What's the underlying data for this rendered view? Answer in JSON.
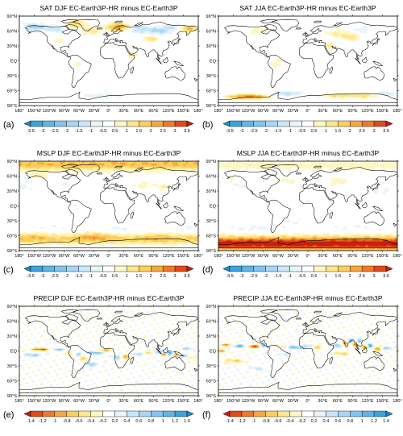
{
  "panels": [
    {
      "id": "a",
      "title": "SAT DJF EC-Earth3P-HR minus EC-Earth3P",
      "label": "(a)",
      "scale": "sat",
      "pattern": "sat_djf"
    },
    {
      "id": "b",
      "title": "SAT JJA EC-Earth3P-HR minus EC-Earth3P",
      "label": "(b)",
      "scale": "sat",
      "pattern": "sat_jja"
    },
    {
      "id": "c",
      "title": "MSLP DJF EC-Earth3P-HR minus EC-Earth3P",
      "label": "(c)",
      "scale": "mslp",
      "pattern": "mslp_djf"
    },
    {
      "id": "d",
      "title": "MSLP JJA EC-Earth3P-HR minus EC-Earth3P",
      "label": "(d)",
      "scale": "mslp",
      "pattern": "mslp_jja"
    },
    {
      "id": "e",
      "title": "PRECIP DJF EC-Earth3P-HR minus EC-Earth3P",
      "label": "(e)",
      "scale": "precip",
      "pattern": "precip_djf"
    },
    {
      "id": "f",
      "title": "PRECIP JJA EC-Earth3P-HR minus EC-Earth3P",
      "label": "(f)",
      "scale": "precip",
      "pattern": "precip_jja"
    }
  ],
  "lat_labels": [
    "90°N",
    "60°N",
    "30°N",
    "EQ",
    "30°S",
    "60°S",
    "90°S"
  ],
  "lon_labels": [
    "180°",
    "150°W",
    "120°W",
    "90°W",
    "60°W",
    "30°W",
    "0°",
    "30°E",
    "60°E",
    "90°E",
    "120°E",
    "150°E",
    "180°"
  ],
  "scales": {
    "sat": {
      "labels": [
        "-3.5",
        "-3",
        "-2.5",
        "-2",
        "-1.5",
        "-1",
        "-0.5",
        "0.5",
        "1",
        "1.5",
        "2",
        "2.5",
        "3",
        "3.5"
      ],
      "colors": [
        "#1e8fd0",
        "#3ea2dc",
        "#5fb5e6",
        "#82c6ee",
        "#a6d7f4",
        "#c9e7f8",
        "#e8f5fb",
        "#ffffff",
        "#fff6c4",
        "#fde88c",
        "#fbcf5e",
        "#f6a83e",
        "#ee7a29",
        "#e24a1b",
        "#c8200f"
      ]
    },
    "mslp": {
      "labels": [
        "-3.5",
        "-3",
        "-2.5",
        "-2",
        "-1.5",
        "-1",
        "-0.5",
        "0.5",
        "1",
        "1.5",
        "2",
        "2.5",
        "3",
        "3.5"
      ],
      "colors": [
        "#1e8fd0",
        "#3ea2dc",
        "#5fb5e6",
        "#82c6ee",
        "#a6d7f4",
        "#c9e7f8",
        "#e8f5fb",
        "#ffffff",
        "#fff6c4",
        "#fde88c",
        "#fbcf5e",
        "#f6a83e",
        "#ee7a29",
        "#e24a1b",
        "#c8200f"
      ]
    },
    "precip": {
      "labels": [
        "-1.4",
        "-1.2",
        "-1",
        "-0.8",
        "-0.6",
        "-0.4",
        "-0.2",
        "0.2",
        "0.4",
        "0.6",
        "0.8",
        "1",
        "1.2",
        "1.4"
      ],
      "colors": [
        "#c8200f",
        "#e24a1b",
        "#ee7a29",
        "#f6a83e",
        "#fbcf5e",
        "#fde88c",
        "#fff6c4",
        "#ffffff",
        "#e8f5fb",
        "#c9e7f8",
        "#a6d7f4",
        "#82c6ee",
        "#5fb5e6",
        "#3ea2dc",
        "#1e8fd0"
      ]
    }
  }
}
